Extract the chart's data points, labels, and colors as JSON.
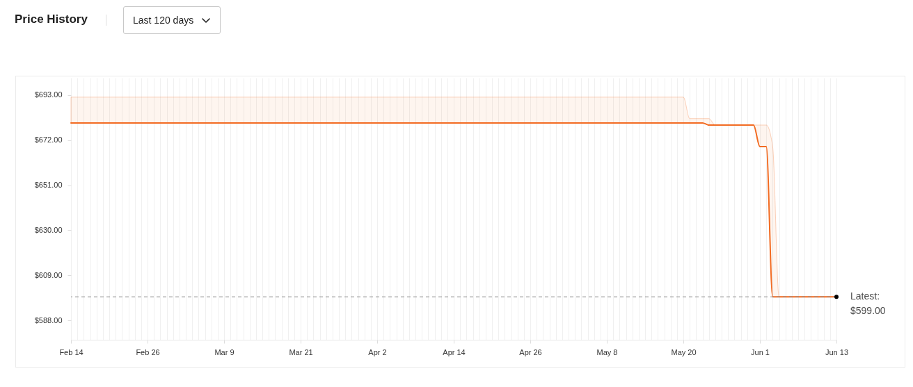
{
  "chart_data": {
    "type": "line",
    "title": "Price History",
    "subtitle": "Last 120 days",
    "x": [
      "--02-14",
      "--05-20",
      "--05-21",
      "--05-23",
      "--05-24",
      "--05-25",
      "--05-31",
      "--06-01",
      "--06-02",
      "--06-03",
      "--06-04",
      "--06-13"
    ],
    "series": [
      {
        "color": "#f26b22",
        "values": [
          680,
          680,
          680,
          680,
          679,
          679,
          679,
          669,
          669,
          599,
          599,
          599
        ],
        "lower": [
          680,
          680,
          680,
          680,
          679,
          679,
          679,
          669,
          669,
          599,
          599,
          599
        ],
        "upper": [
          692,
          692,
          682,
          682,
          682,
          679,
          679,
          679,
          679,
          669,
          599,
          599
        ]
      },
      {
        "type": "scatter",
        "color": "#000000",
        "x": [
          "--06-13"
        ],
        "values": [
          599
        ]
      }
    ],
    "xlim": [
      "--02-14",
      "--06-13"
    ],
    "xticks": [
      {
        "value": "--02-14",
        "label": "Feb 14"
      },
      {
        "value": "--02-15",
        "label": null
      },
      {
        "value": "--02-16",
        "label": null
      },
      {
        "value": "--02-17",
        "label": null
      },
      {
        "value": "--02-18",
        "label": null
      },
      {
        "value": "--02-19",
        "label": null
      },
      {
        "value": "--02-20",
        "label": null
      },
      {
        "value": "--02-21",
        "label": null
      },
      {
        "value": "--02-22",
        "label": null
      },
      {
        "value": "--02-23",
        "label": null
      },
      {
        "value": "--02-24",
        "label": null
      },
      {
        "value": "--02-25",
        "label": null
      },
      {
        "value": "--02-26",
        "label": "Feb 26"
      },
      {
        "value": "--02-27",
        "label": null
      },
      {
        "value": "--02-28",
        "label": null
      },
      {
        "value": "--02-29",
        "label": null
      },
      {
        "value": "--03-01",
        "label": null
      },
      {
        "value": "--03-02",
        "label": null
      },
      {
        "value": "--03-03",
        "label": null
      },
      {
        "value": "--03-04",
        "label": null
      },
      {
        "value": "--03-05",
        "label": null
      },
      {
        "value": "--03-06",
        "label": null
      },
      {
        "value": "--03-07",
        "label": null
      },
      {
        "value": "--03-08",
        "label": null
      },
      {
        "value": "--03-09",
        "label": "Mar 9"
      },
      {
        "value": "--03-10",
        "label": null
      },
      {
        "value": "--03-11",
        "label": null
      },
      {
        "value": "--03-12",
        "label": null
      },
      {
        "value": "--03-13",
        "label": null
      },
      {
        "value": "--03-14",
        "label": null
      },
      {
        "value": "--03-15",
        "label": null
      },
      {
        "value": "--03-16",
        "label": null
      },
      {
        "value": "--03-17",
        "label": null
      },
      {
        "value": "--03-18",
        "label": null
      },
      {
        "value": "--03-19",
        "label": null
      },
      {
        "value": "--03-20",
        "label": null
      },
      {
        "value": "--03-21",
        "label": "Mar 21"
      },
      {
        "value": "--03-22",
        "label": null
      },
      {
        "value": "--03-23",
        "label": null
      },
      {
        "value": "--03-24",
        "label": null
      },
      {
        "value": "--03-25",
        "label": null
      },
      {
        "value": "--03-26",
        "label": null
      },
      {
        "value": "--03-27",
        "label": null
      },
      {
        "value": "--03-28",
        "label": null
      },
      {
        "value": "--03-29",
        "label": null
      },
      {
        "value": "--03-30",
        "label": null
      },
      {
        "value": "--03-31",
        "label": null
      },
      {
        "value": "--04-01",
        "label": null
      },
      {
        "value": "--04-02",
        "label": "Apr 2"
      },
      {
        "value": "--04-03",
        "label": null
      },
      {
        "value": "--04-04",
        "label": null
      },
      {
        "value": "--04-05",
        "label": null
      },
      {
        "value": "--04-06",
        "label": null
      },
      {
        "value": "--04-07",
        "label": null
      },
      {
        "value": "--04-08",
        "label": null
      },
      {
        "value": "--04-09",
        "label": null
      },
      {
        "value": "--04-10",
        "label": null
      },
      {
        "value": "--04-11",
        "label": null
      },
      {
        "value": "--04-12",
        "label": null
      },
      {
        "value": "--04-13",
        "label": null
      },
      {
        "value": "--04-14",
        "label": "Apr 14"
      },
      {
        "value": "--04-15",
        "label": null
      },
      {
        "value": "--04-16",
        "label": null
      },
      {
        "value": "--04-17",
        "label": null
      },
      {
        "value": "--04-18",
        "label": null
      },
      {
        "value": "--04-19",
        "label": null
      },
      {
        "value": "--04-20",
        "label": null
      },
      {
        "value": "--04-21",
        "label": null
      },
      {
        "value": "--04-22",
        "label": null
      },
      {
        "value": "--04-23",
        "label": null
      },
      {
        "value": "--04-24",
        "label": null
      },
      {
        "value": "--04-25",
        "label": null
      },
      {
        "value": "--04-26",
        "label": "Apr 26"
      },
      {
        "value": "--04-27",
        "label": null
      },
      {
        "value": "--04-28",
        "label": null
      },
      {
        "value": "--04-29",
        "label": null
      },
      {
        "value": "--04-30",
        "label": null
      },
      {
        "value": "--05-01",
        "label": null
      },
      {
        "value": "--05-02",
        "label": null
      },
      {
        "value": "--05-03",
        "label": null
      },
      {
        "value": "--05-04",
        "label": null
      },
      {
        "value": "--05-05",
        "label": null
      },
      {
        "value": "--05-06",
        "label": null
      },
      {
        "value": "--05-07",
        "label": null
      },
      {
        "value": "--05-08",
        "label": "May 8"
      },
      {
        "value": "--05-09",
        "label": null
      },
      {
        "value": "--05-10",
        "label": null
      },
      {
        "value": "--05-11",
        "label": null
      },
      {
        "value": "--05-12",
        "label": null
      },
      {
        "value": "--05-13",
        "label": null
      },
      {
        "value": "--05-14",
        "label": null
      },
      {
        "value": "--05-15",
        "label": null
      },
      {
        "value": "--05-16",
        "label": null
      },
      {
        "value": "--05-17",
        "label": null
      },
      {
        "value": "--05-18",
        "label": null
      },
      {
        "value": "--05-19",
        "label": null
      },
      {
        "value": "--05-20",
        "label": "May 20"
      },
      {
        "value": "--05-21",
        "label": null
      },
      {
        "value": "--05-22",
        "label": null
      },
      {
        "value": "--05-23",
        "label": null
      },
      {
        "value": "--05-24",
        "label": null
      },
      {
        "value": "--05-25",
        "label": null
      },
      {
        "value": "--05-26",
        "label": null
      },
      {
        "value": "--05-27",
        "label": null
      },
      {
        "value": "--05-28",
        "label": null
      },
      {
        "value": "--05-29",
        "label": null
      },
      {
        "value": "--05-30",
        "label": null
      },
      {
        "value": "--05-31",
        "label": null
      },
      {
        "value": "--06-01",
        "label": "Jun 1"
      },
      {
        "value": "--06-02",
        "label": null
      },
      {
        "value": "--06-03",
        "label": null
      },
      {
        "value": "--06-04",
        "label": null
      },
      {
        "value": "--06-05",
        "label": null
      },
      {
        "value": "--06-06",
        "label": null
      },
      {
        "value": "--06-07",
        "label": null
      },
      {
        "value": "--06-08",
        "label": null
      },
      {
        "value": "--06-09",
        "label": null
      },
      {
        "value": "--06-10",
        "label": null
      },
      {
        "value": "--06-11",
        "label": null
      },
      {
        "value": "--06-12",
        "label": null
      },
      {
        "value": "--06-13",
        "label": "Jun 13"
      }
    ],
    "ylim": [
      579,
      701
    ],
    "yticks": [
      {
        "value": 588,
        "label": "$588.00"
      },
      {
        "value": 609,
        "label": "$609.00"
      },
      {
        "value": 630,
        "label": "$630.00"
      },
      {
        "value": 651,
        "label": "$651.00"
      },
      {
        "value": 672,
        "label": "$672.00"
      },
      {
        "value": 693,
        "label": "$693.00"
      }
    ],
    "grid": "x",
    "ref_lines": [
      {
        "axis": "y",
        "value": 599,
        "label": "Latest: $599.00",
        "color": "#8c8c8c",
        "line_style": "dashed"
      }
    ]
  }
}
